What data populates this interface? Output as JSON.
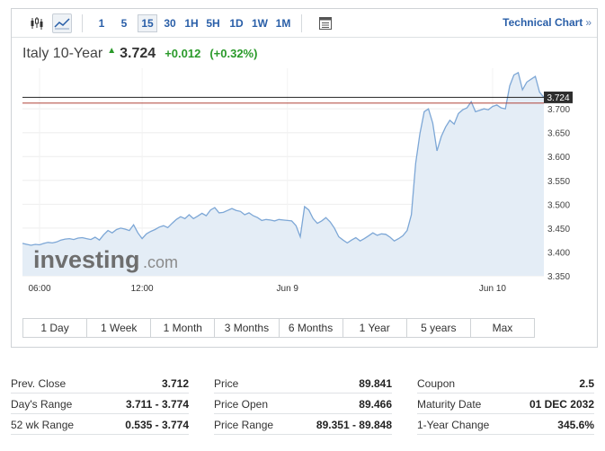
{
  "toolbar": {
    "chart_type_icons": [
      "candlestick-icon",
      "line-chart-icon"
    ],
    "intervals": [
      "1",
      "5",
      "15",
      "30",
      "1H",
      "5H",
      "1D",
      "1W",
      "1M"
    ],
    "active_interval": "15",
    "settings_icon": "table-icon",
    "technical_link": "Technical Chart",
    "technical_arrow": "»"
  },
  "quote": {
    "name": "Italy 10-Year",
    "direction_glyph": "▲",
    "price": "3.724",
    "change": "+0.012",
    "change_pct": "(+0.32%)",
    "up_color": "#2a9a2a"
  },
  "watermark": {
    "brand": "investing",
    "suffix": ".com"
  },
  "ranges": [
    "1 Day",
    "1 Week",
    "1 Month",
    "3 Months",
    "6 Months",
    "1 Year",
    "5 years",
    "Max"
  ],
  "chart_data": {
    "type": "area",
    "y_ticks": [
      "3.350",
      "3.400",
      "3.450",
      "3.500",
      "3.550",
      "3.600",
      "3.650",
      "3.700"
    ],
    "ylim": [
      3.35,
      3.785
    ],
    "x_ticks": [
      {
        "label": "06:00",
        "x": 4
      },
      {
        "label": "12:00",
        "x": 28
      },
      {
        "label": "Jun 9",
        "x": 62
      },
      {
        "label": "Jun 10",
        "x": 110
      }
    ],
    "xlim": [
      0,
      122
    ],
    "current_price_label": "3.724",
    "current_value": 3.724,
    "prev_close_value": 3.712,
    "line_color": "#7da7d6",
    "fill_color": "#e4edf6",
    "y": [
      3.418,
      3.416,
      3.414,
      3.416,
      3.415,
      3.418,
      3.42,
      3.419,
      3.421,
      3.425,
      3.427,
      3.428,
      3.426,
      3.429,
      3.43,
      3.428,
      3.426,
      3.431,
      3.425,
      3.436,
      3.445,
      3.44,
      3.447,
      3.45,
      3.448,
      3.445,
      3.457,
      3.44,
      3.428,
      3.438,
      3.443,
      3.447,
      3.452,
      3.455,
      3.451,
      3.46,
      3.468,
      3.474,
      3.47,
      3.478,
      3.47,
      3.475,
      3.481,
      3.476,
      3.488,
      3.493,
      3.482,
      3.483,
      3.487,
      3.491,
      3.487,
      3.485,
      3.478,
      3.482,
      3.476,
      3.472,
      3.466,
      3.468,
      3.467,
      3.465,
      3.468,
      3.467,
      3.466,
      3.465,
      3.455,
      3.432,
      3.495,
      3.488,
      3.47,
      3.46,
      3.465,
      3.472,
      3.463,
      3.45,
      3.432,
      3.425,
      3.419,
      3.425,
      3.43,
      3.423,
      3.428,
      3.434,
      3.44,
      3.435,
      3.438,
      3.437,
      3.431,
      3.423,
      3.428,
      3.434,
      3.445,
      3.478,
      3.586,
      3.648,
      3.694,
      3.7,
      3.67,
      3.612,
      3.642,
      3.662,
      3.676,
      3.668,
      3.69,
      3.698,
      3.702,
      3.715,
      3.694,
      3.697,
      3.7,
      3.698,
      3.705,
      3.708,
      3.702,
      3.7,
      3.748,
      3.771,
      3.776,
      3.74,
      3.756,
      3.762,
      3.768,
      3.735,
      3.724
    ]
  },
  "stats": {
    "col1": [
      {
        "label": "Prev. Close",
        "value": "3.712"
      },
      {
        "label": "Day's Range",
        "value": "3.711 - 3.774"
      },
      {
        "label": "52 wk Range",
        "value": "0.535 - 3.774"
      }
    ],
    "col2": [
      {
        "label": "Price",
        "value": "89.841"
      },
      {
        "label": "Price Open",
        "value": "89.466"
      },
      {
        "label": "Price Range",
        "value": "89.351 - 89.848"
      }
    ],
    "col3": [
      {
        "label": "Coupon",
        "value": "2.5"
      },
      {
        "label": "Maturity Date",
        "value": "01 DEC 2032"
      },
      {
        "label": "1-Year Change",
        "value": "345.6%"
      }
    ]
  }
}
